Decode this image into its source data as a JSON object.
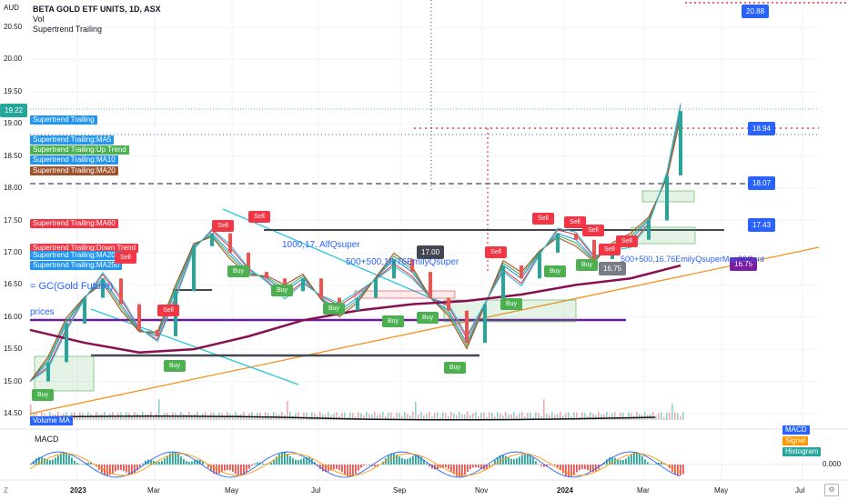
{
  "header": {
    "currency": "AUD",
    "title": "BETA GOLD ETF UNITS, 1D, ASX",
    "vol": "Vol",
    "indicator": "Supertrend Trailing"
  },
  "indicator_labels": [
    {
      "text": "Supertrend Trailing",
      "color": "#2196f3"
    },
    {
      "text": "Supertrend Trailing:MA5",
      "color": "#2196f3"
    },
    {
      "text": "Supertrend Trailing:Up Trend",
      "color": "#4caf50"
    },
    {
      "text": "Supertrend Trailing:MA10",
      "color": "#2196f3"
    },
    {
      "text": "Supertrend Trailing:MA20",
      "color": "#a0522d"
    },
    {
      "text": "Supertrend Trailing:MA60",
      "color": "#f23645"
    },
    {
      "text": "Supertrend Trailing:Down Trend",
      "color": "#f23645"
    },
    {
      "text": "Supertrend Trailing:MA200",
      "color": "#2196f3"
    },
    {
      "text": "Supertrend Trailing:MA250",
      "color": "#2196f3"
    }
  ],
  "price_tags": [
    {
      "text": "20.88",
      "color": "#2962ff"
    },
    {
      "text": "18.94",
      "color": "#2962ff"
    },
    {
      "text": "18.07",
      "color": "#2962ff"
    },
    {
      "text": "17.43",
      "color": "#2962ff"
    },
    {
      "text": "16.75",
      "color": "#7b1fa2"
    },
    {
      "text": "19.22",
      "color": "#26a69a"
    },
    {
      "text": "17.00",
      "color": "#434651"
    },
    {
      "text": "16.75",
      "color": "#787b86"
    }
  ],
  "annotations": {
    "alf": "1000,17. AlfQsuper",
    "emily1": "500+500,16.76EmilyQsuper",
    "emily2": "500+500,16.76EmilyQsuperMay23Cont",
    "gc": "= GC(Gold Future)",
    "prices": "prices",
    "volume_ma": "Volume MA"
  },
  "macd": {
    "label": "MACD",
    "legend": [
      {
        "text": "MACD",
        "color": "#2962ff"
      },
      {
        "text": "Signal",
        "color": "#ff9800"
      },
      {
        "text": "Histogram",
        "color": "#26a69a"
      }
    ],
    "zero": "0.000"
  },
  "signals": {
    "buy": "Buy",
    "sell": "Sell"
  },
  "axis_z": "Z",
  "chart_data": {
    "type": "line",
    "title": "BETA GOLD ETF UNITS, 1D, ASX",
    "ylabel": "AUD",
    "ylim": [
      14.3,
      20.9
    ],
    "y_ticks": [
      "20.50",
      "20.00",
      "19.50",
      "19.00",
      "18.50",
      "18.00",
      "17.50",
      "17.00",
      "16.50",
      "16.00",
      "15.50",
      "15.00",
      "14.50"
    ],
    "x_ticks": [
      "2023",
      "Mar",
      "May",
      "Jul",
      "Sep",
      "Nov",
      "2024",
      "Mar",
      "May",
      "Jul"
    ],
    "series": [
      {
        "name": "Supertrend Trailing",
        "x": [
          0,
          20,
          40,
          60,
          80,
          100,
          120,
          140,
          160,
          180,
          200,
          220,
          240,
          260,
          280,
          300,
          320,
          340,
          360,
          380,
          400,
          420,
          440,
          460,
          480,
          500,
          520,
          540,
          560,
          580,
          600,
          620,
          640,
          660,
          680,
          700,
          715
        ],
        "values": [
          15.0,
          15.3,
          15.9,
          16.3,
          16.6,
          16.2,
          15.8,
          15.7,
          16.4,
          17.1,
          17.3,
          17.0,
          16.7,
          16.6,
          16.4,
          16.6,
          16.3,
          16.1,
          16.3,
          16.6,
          16.9,
          16.7,
          16.3,
          16.1,
          15.6,
          16.2,
          16.8,
          16.6,
          17.0,
          17.3,
          17.2,
          16.9,
          17.1,
          17.2,
          17.5,
          18.2,
          19.2
        ]
      },
      {
        "name": "MA200",
        "x": [
          0,
          60,
          120,
          180,
          240,
          300,
          360,
          420,
          480,
          540,
          600,
          660,
          715
        ],
        "values": [
          15.8,
          15.6,
          15.45,
          15.5,
          15.7,
          15.95,
          16.1,
          16.2,
          16.25,
          16.35,
          16.5,
          16.6,
          16.8
        ]
      }
    ],
    "levels": [
      {
        "value": 18.94
      },
      {
        "value": 18.07
      },
      {
        "value": 17.43
      },
      {
        "value": 16.75
      },
      {
        "value": 20.88
      }
    ]
  }
}
